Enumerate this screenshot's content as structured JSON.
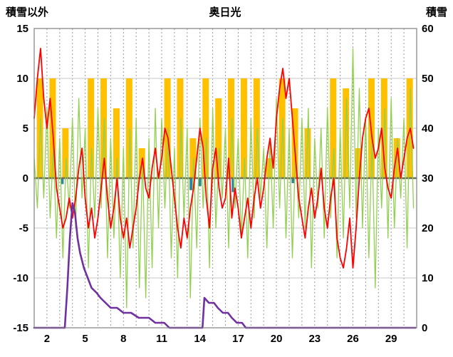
{
  "title": "奥日光",
  "left_axis_title": "積雪以外",
  "right_axis_title": "積雪",
  "colors": {
    "orange_bars": "#FFC000",
    "green_line": "#92D050",
    "red_line": "#FF0000",
    "teal_bars": "#31859C",
    "purple_line": "#7030A0",
    "zero_line": "#6d6d5a",
    "grid_minor": "#c8c8c8",
    "grid_dashed": "#9a9a9a",
    "frame": "#808080"
  },
  "chart_data": {
    "type": "line",
    "title": "奥日光",
    "x_axis": {
      "label": "",
      "range": [
        1,
        31
      ],
      "ticks": [
        2,
        5,
        8,
        11,
        14,
        17,
        20,
        23,
        26,
        29
      ],
      "grid": "dashed-vertical-daily"
    },
    "left_axis": {
      "label": "積雪以外",
      "range": [
        -15,
        15
      ],
      "ticks": [
        15,
        10,
        5,
        0,
        -5,
        -10,
        -15
      ]
    },
    "right_axis": {
      "label": "積雪",
      "range": [
        0,
        60
      ],
      "ticks": [
        60,
        50,
        40,
        30,
        20,
        10,
        0
      ]
    },
    "legend": "none",
    "series": [
      {
        "name": "orange-bars",
        "type": "bar",
        "axis": "left",
        "color": "#FFC000",
        "categories": [
          1,
          2,
          3,
          4,
          5,
          6,
          7,
          8,
          9,
          10,
          11,
          12,
          13,
          14,
          15,
          16,
          17,
          18,
          19,
          20,
          21,
          22,
          23,
          24,
          25,
          26,
          27,
          28,
          29,
          30
        ],
        "values": [
          10,
          10,
          5,
          0,
          10,
          10,
          7,
          10,
          3,
          0,
          10,
          10,
          4,
          10,
          8,
          10,
          10,
          10,
          2,
          10,
          7,
          5,
          0,
          10,
          9,
          3,
          10,
          10,
          4,
          10
        ]
      },
      {
        "name": "green-line",
        "type": "line",
        "axis": "left",
        "color": "#92D050",
        "width": 1.3,
        "x_start": 1,
        "x_step": 0.25,
        "values": [
          2,
          -3,
          6,
          -2,
          7,
          -4,
          3,
          -6,
          4,
          -8,
          2,
          -3,
          6,
          -5,
          8,
          -2,
          5,
          -9,
          3,
          -4,
          7,
          -3,
          6,
          -8,
          4,
          -6,
          2,
          -10,
          3,
          -13,
          5,
          -7,
          6,
          -11,
          2,
          -12,
          4,
          -9,
          7,
          -5,
          6,
          -3,
          5,
          -8,
          3,
          -10,
          6,
          -4,
          5,
          -12,
          2,
          -7,
          6,
          -3,
          4,
          -9,
          7,
          -5,
          3,
          -2,
          5,
          -7,
          6,
          -3,
          4,
          -6,
          2,
          -8,
          6,
          -4,
          5,
          -2,
          3,
          -7,
          4,
          -5,
          8,
          -3,
          6,
          -6,
          5,
          -8,
          3,
          -4,
          6,
          -5,
          7,
          -9,
          4,
          -3,
          5,
          -6,
          7,
          -4,
          3,
          -8,
          5,
          -6,
          8,
          -3,
          13,
          -4,
          9,
          -5,
          6,
          -8,
          4,
          -11,
          5,
          -3,
          7,
          -6,
          8,
          -5,
          4,
          -2,
          6,
          -7,
          9,
          -3
        ]
      },
      {
        "name": "red-line",
        "type": "line",
        "axis": "left",
        "color": "#FF0000",
        "width": 1.8,
        "x_start": 1,
        "x_step": 0.25,
        "values": [
          6,
          10,
          13,
          8,
          5,
          8,
          4,
          -1,
          -3,
          -5,
          -4,
          -2,
          -4,
          -2,
          1,
          3,
          -2,
          -5,
          -3,
          -6,
          -4,
          -1,
          2,
          -2,
          -5,
          -3,
          0,
          -4,
          -6,
          -4,
          -7,
          -5,
          -3,
          0,
          2,
          -1,
          -2,
          1,
          3,
          0,
          2,
          5,
          4,
          1,
          -2,
          -5,
          -7,
          -4,
          -6,
          -3,
          -1,
          2,
          5,
          3,
          -2,
          -5,
          1,
          3,
          -1,
          -3,
          -2,
          2,
          -4,
          -1,
          -3,
          -6,
          -4,
          -2,
          -5,
          -2,
          0,
          -3,
          -1,
          2,
          4,
          1,
          6,
          9,
          11,
          8,
          10,
          6,
          2,
          -2,
          -4,
          -6,
          -3,
          -1,
          -4,
          -2,
          1,
          -3,
          -5,
          -2,
          0,
          -6,
          -8,
          -9,
          -7,
          -4,
          -9,
          -5,
          0,
          4,
          6,
          7,
          4,
          2,
          3,
          5,
          1,
          -1,
          -2,
          1,
          3,
          0,
          2,
          4,
          5,
          3
        ]
      },
      {
        "name": "teal-bars",
        "type": "bar",
        "axis": "left",
        "color": "#31859C",
        "points": [
          [
            3.2,
            -0.6
          ],
          [
            13.3,
            -1.2
          ],
          [
            14.0,
            -0.8
          ],
          [
            16.6,
            -1.4
          ],
          [
            21.3,
            -0.5
          ]
        ]
      },
      {
        "name": "積雪",
        "type": "line",
        "axis": "right",
        "color": "#7030A0",
        "width": 2.6,
        "points": [
          [
            1,
            0
          ],
          [
            3.4,
            0
          ],
          [
            3.6,
            8
          ],
          [
            3.8,
            18
          ],
          [
            4.0,
            25
          ],
          [
            4.2,
            23
          ],
          [
            4.4,
            18
          ],
          [
            4.6,
            15
          ],
          [
            4.9,
            12
          ],
          [
            5.2,
            10
          ],
          [
            5.5,
            8
          ],
          [
            5.9,
            7
          ],
          [
            6.2,
            6
          ],
          [
            6.6,
            5
          ],
          [
            7.0,
            4
          ],
          [
            7.5,
            4
          ],
          [
            8.0,
            3
          ],
          [
            8.6,
            3
          ],
          [
            9.2,
            2
          ],
          [
            10.0,
            2
          ],
          [
            10.5,
            1
          ],
          [
            11.2,
            1
          ],
          [
            11.6,
            0
          ],
          [
            14.2,
            0
          ],
          [
            14.35,
            6
          ],
          [
            14.7,
            5
          ],
          [
            15.1,
            5
          ],
          [
            15.4,
            4
          ],
          [
            15.8,
            3
          ],
          [
            16.2,
            3
          ],
          [
            16.5,
            2
          ],
          [
            16.9,
            1
          ],
          [
            17.3,
            1
          ],
          [
            17.6,
            0
          ],
          [
            30.9,
            0
          ]
        ]
      }
    ]
  }
}
